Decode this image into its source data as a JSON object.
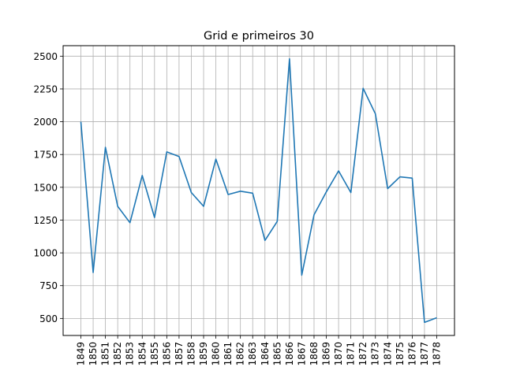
{
  "chart_data": {
    "type": "line",
    "title": "Grid e primeiros 30",
    "xlabel": "",
    "ylabel": "",
    "grid": true,
    "x": [
      "1849",
      "1850",
      "1851",
      "1852",
      "1853",
      "1854",
      "1855",
      "1856",
      "1857",
      "1858",
      "1859",
      "1860",
      "1861",
      "1862",
      "1863",
      "1864",
      "1865",
      "1866",
      "1867",
      "1868",
      "1869",
      "1870",
      "1871",
      "1872",
      "1873",
      "1874",
      "1875",
      "1876",
      "1877",
      "1878"
    ],
    "series": [
      {
        "values": [
          2000,
          850,
          1805,
          1355,
          1230,
          1590,
          1270,
          1770,
          1735,
          1460,
          1355,
          1715,
          1445,
          1470,
          1455,
          1095,
          1240,
          2480,
          830,
          1290,
          1465,
          1625,
          1460,
          2255,
          2060,
          1490,
          1580,
          1570,
          470,
          505
        ],
        "color": "#1f77b4"
      }
    ],
    "yticks": [
      500,
      750,
      1000,
      1250,
      1500,
      1750,
      2000,
      2250,
      2500
    ],
    "yticklabels": [
      "500",
      "750",
      "1000",
      "1250",
      "1500",
      "1750",
      "2000",
      "2250",
      "2500"
    ],
    "ylim": [
      370,
      2580
    ]
  }
}
